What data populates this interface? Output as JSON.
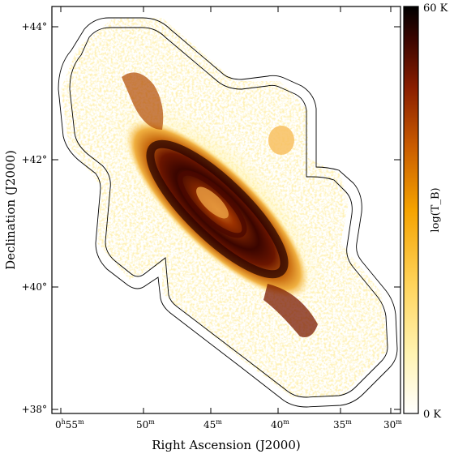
{
  "figure": {
    "x_axis_title": "Right Ascension (J2000)",
    "y_axis_title": "Declination (J2000)",
    "x_ticks": [
      {
        "label": "0h55m",
        "hour": "0",
        "min": "55"
      },
      {
        "label": "50m",
        "value": "50"
      },
      {
        "label": "45m",
        "value": "45"
      },
      {
        "label": "40m",
        "value": "40"
      },
      {
        "label": "35m",
        "value": "35"
      },
      {
        "label": "30m",
        "value": "30"
      }
    ],
    "y_ticks": [
      {
        "label": "+44°"
      },
      {
        "label": "+42°"
      },
      {
        "label": "+40°"
      },
      {
        "label": "+38°"
      }
    ],
    "colorbar": {
      "title": "log(T_B)",
      "max_label": "60 K",
      "min_label": "0 K",
      "colors": [
        "#ffffff",
        "#fff3b0",
        "#ffd35a",
        "#f5a300",
        "#c85a00",
        "#8a1e00",
        "#3a0500",
        "#000000"
      ]
    }
  }
}
